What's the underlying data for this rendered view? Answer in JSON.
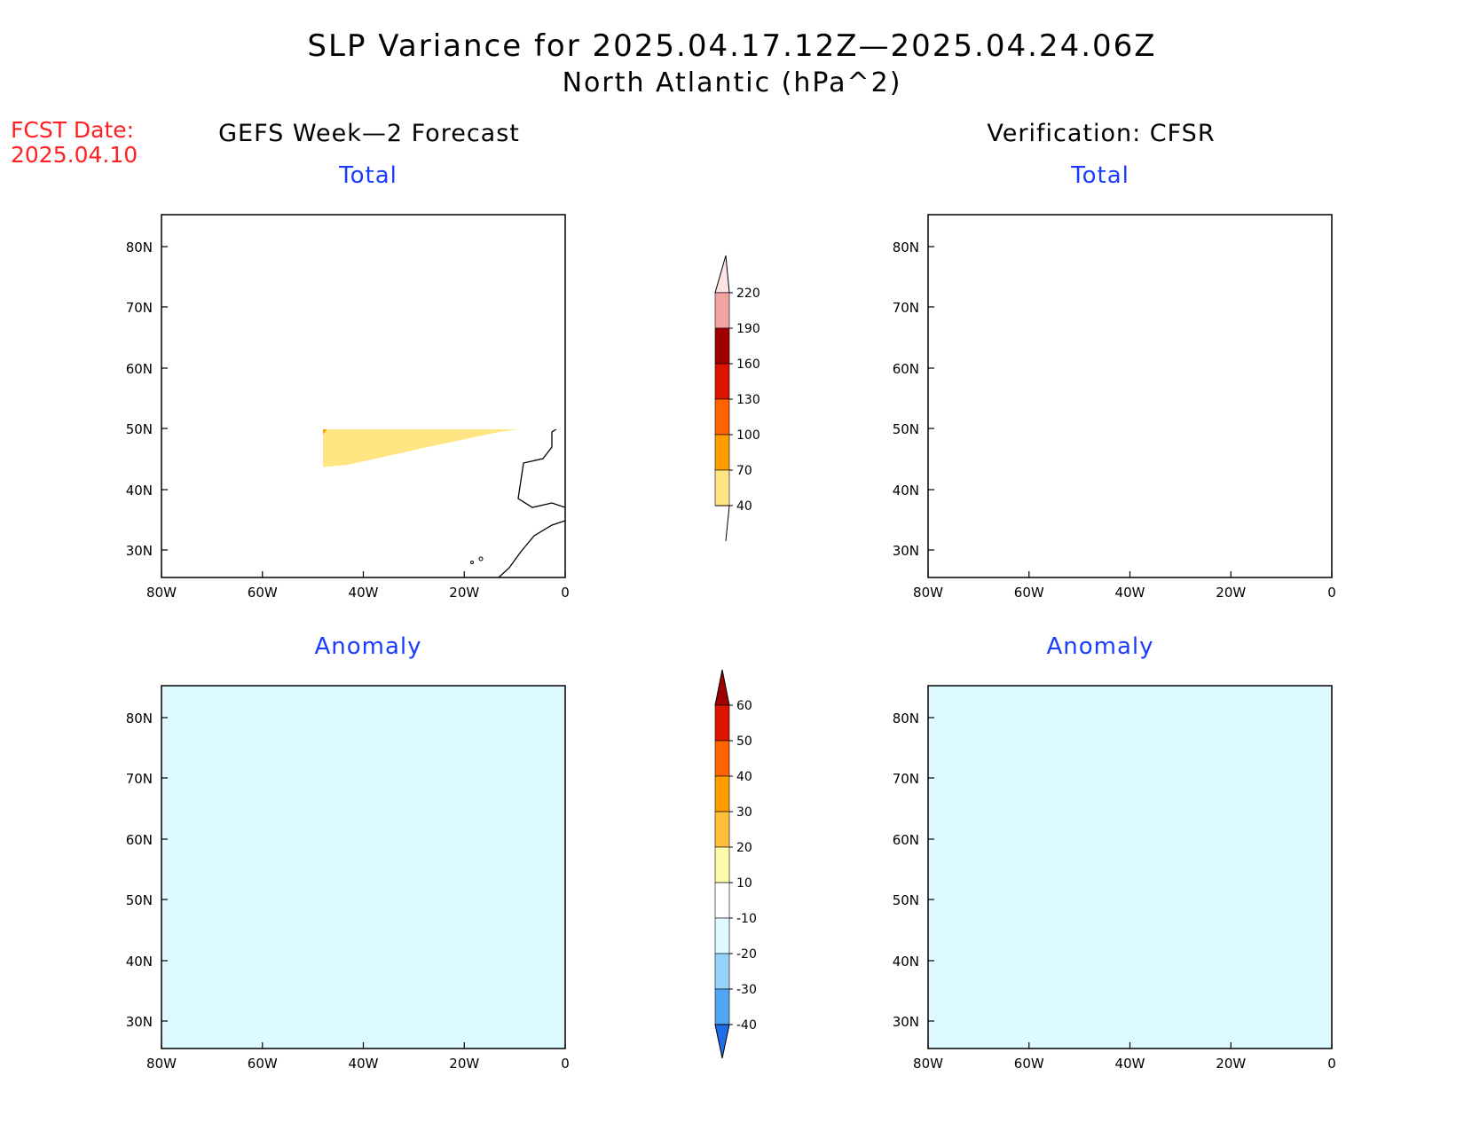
{
  "title": {
    "line1": "SLP Variance for 2025.04.17.12Z—2025.04.24.06Z",
    "line2": "North Atlantic (hPa^2)"
  },
  "fcst_date": {
    "label": "FCST Date:",
    "value": "2025.04.10"
  },
  "columns": {
    "left": "GEFS Week—2 Forecast",
    "right": "Verification: CFSR"
  },
  "panels": {
    "top_left": "Total",
    "top_right": "Total",
    "bottom_left": "Anomaly",
    "bottom_right": "Anomaly"
  },
  "axes": {
    "lon_ticks": [
      "80W",
      "60W",
      "40W",
      "20W",
      "0"
    ],
    "lat_ticks": [
      "80N",
      "70N",
      "60N",
      "50N",
      "40N",
      "30N"
    ]
  },
  "colorbars": {
    "total": {
      "labels": [
        "220",
        "190",
        "160",
        "130",
        "100",
        "70",
        "40"
      ],
      "colors": [
        "#fde4e4",
        "#f4a3a3",
        "#a00000",
        "#dc1500",
        "#ff6400",
        "#ff9c00",
        "#ffe682"
      ]
    },
    "anomaly": {
      "labels": [
        "60",
        "50",
        "40",
        "30",
        "20",
        "10",
        "-10",
        "-20",
        "-30",
        "-40"
      ],
      "colors": [
        "#a00000",
        "#dc1500",
        "#ff6400",
        "#ff9c00",
        "#ffbe3c",
        "#fffaaa",
        "#ffffff",
        "#dcfaff",
        "#96d2fa",
        "#50a5f5",
        "#1e6eeb"
      ]
    }
  }
}
